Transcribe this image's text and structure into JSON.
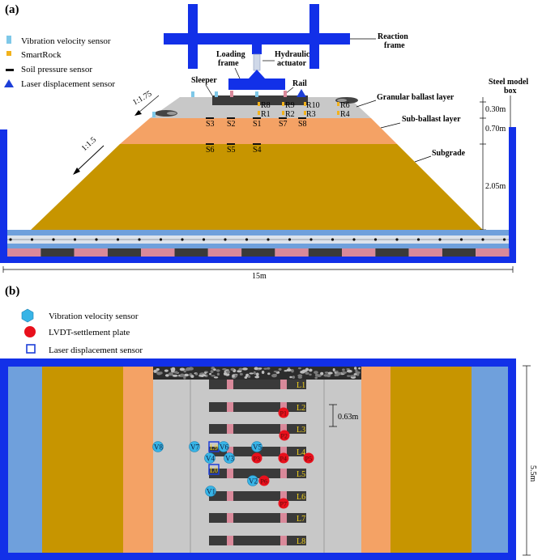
{
  "panel_a": {
    "label": "(a)",
    "legend": [
      {
        "name": "vibration-velocity-sensor",
        "text": "Vibration velocity sensor",
        "color": "#7ec8e8"
      },
      {
        "name": "smartrock",
        "text": "SmartRock",
        "color": "#f2b21c"
      },
      {
        "name": "soil-pressure-sensor",
        "text": "Soil pressure sensor",
        "color": "#111111"
      },
      {
        "name": "laser-displacement-sensor",
        "text": "Laser displacement sensor",
        "color": "#1d3fd8"
      }
    ],
    "labels": {
      "reaction_frame_1": "Reaction",
      "reaction_frame_2": "frame",
      "loading_frame_1": "Loading",
      "loading_frame_2": "frame",
      "hydraulic_1": "Hydraulic",
      "hydraulic_2": "actuator",
      "sleeper": "Sleeper",
      "rail": "Rail",
      "steel_box_1": "Steel model",
      "steel_box_2": "box",
      "granular": "Granular ballast layer",
      "sub_ballast": "Sub-ballast layer",
      "subgrade": "Subgrade",
      "slope_175": "1:1.75",
      "slope_15": "1:1.5",
      "dim_030": "0.30m",
      "dim_070": "0.70m",
      "dim_205": "2.05m",
      "width": "15m"
    },
    "smartrocks": [
      "R8",
      "R1",
      "R9",
      "R2",
      "R10",
      "R3",
      "R6",
      "R4"
    ],
    "pressure_sensors": [
      "S3",
      "S2",
      "S1",
      "S7",
      "S8",
      "S6",
      "S5",
      "S4"
    ]
  },
  "panel_b": {
    "label": "(b)",
    "legend": [
      {
        "name": "vibration-velocity-sensor",
        "text": "Vibration velocity sensor",
        "color": "#37b4e6"
      },
      {
        "name": "lvdt-settlement-plate",
        "text": "LVDT-settlement plate",
        "color": "#e8101c"
      },
      {
        "name": "laser-displacement-sensor",
        "text": "Laser displacement sensor",
        "color": "#1d3fd8"
      }
    ],
    "sleepers": [
      "L1",
      "L2",
      "L3",
      "L4",
      "L5",
      "L6",
      "L7",
      "L8"
    ],
    "vibration": [
      "V8",
      "V7",
      "V6",
      "V5",
      "V4",
      "V3",
      "V2",
      "V1"
    ],
    "lvdt": [
      "P1",
      "P2",
      "P3",
      "P4",
      "P5",
      "P6",
      "P7"
    ],
    "laser": [
      "L9",
      "L0"
    ],
    "dim_063": "0.63m",
    "dim_55": "5.5m"
  },
  "colors": {
    "steel": "#1230e8",
    "ballast": "#c8c8c8",
    "subballast": "#f4a265",
    "subgrade": "#c79500",
    "light_blue": "#6fa0dc",
    "pink": "#d9899a",
    "dark": "#3a3a3a"
  }
}
